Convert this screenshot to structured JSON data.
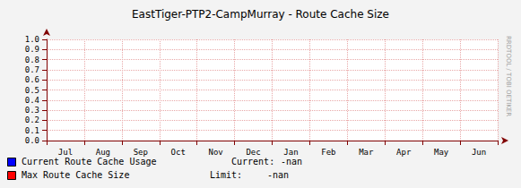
{
  "chart_data": {
    "type": "line",
    "title": "EastTiger-PTP2-CampMurray - Route Cache Size",
    "categories": [
      "Jul",
      "Aug",
      "Sep",
      "Oct",
      "Nov",
      "Dec",
      "Jan",
      "Feb",
      "Mar",
      "Apr",
      "May",
      "Jun"
    ],
    "series": [
      {
        "name": "Current Route Cache Usage",
        "color": "#0000ff",
        "stat_label": "Current:",
        "stat_value": "-nan",
        "values": [
          null,
          null,
          null,
          null,
          null,
          null,
          null,
          null,
          null,
          null,
          null,
          null
        ]
      },
      {
        "name": "Max Route Cache Size",
        "color": "#ff0000",
        "stat_label": "Limit:",
        "stat_value": "-nan",
        "values": [
          null,
          null,
          null,
          null,
          null,
          null,
          null,
          null,
          null,
          null,
          null,
          null
        ]
      }
    ],
    "ylim": [
      0,
      1
    ],
    "yticks": [
      {
        "value": 0,
        "label": "0.0"
      },
      {
        "value": 0.1,
        "label": "0.1"
      },
      {
        "value": 0.2,
        "label": "0.2"
      },
      {
        "value": 0.3,
        "label": "0.3"
      },
      {
        "value": 0.4,
        "label": "0.4"
      },
      {
        "value": 0.5,
        "label": "0.5"
      },
      {
        "value": 0.6,
        "label": "0.6"
      },
      {
        "value": 0.7,
        "label": "0.7"
      },
      {
        "value": 0.8,
        "label": "0.8"
      },
      {
        "value": 0.9,
        "label": "0.9"
      },
      {
        "value": 1,
        "label": "1.0"
      }
    ],
    "grid": true,
    "watermark": "RRDTOOL / TOBI OETIKER"
  }
}
